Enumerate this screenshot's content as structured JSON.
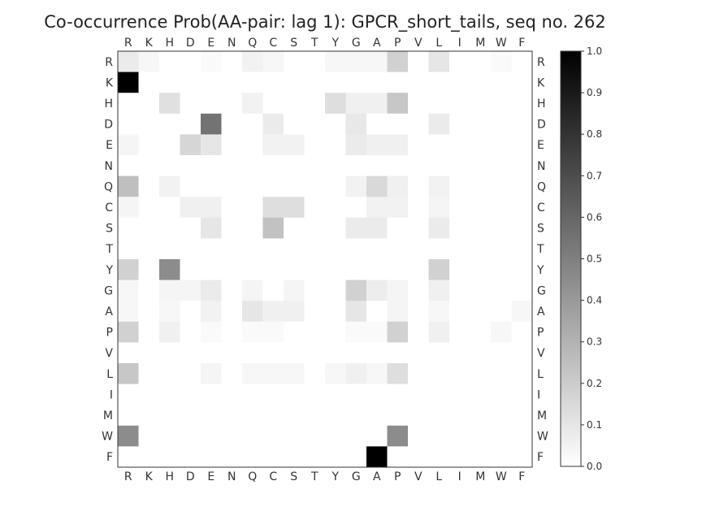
{
  "chart_data": {
    "type": "heatmap",
    "title": "Co-occurrence Prob(AA-pair: lag 1):  GPCR_short_tails, seq no. 262",
    "labels": [
      "R",
      "K",
      "H",
      "D",
      "E",
      "N",
      "Q",
      "C",
      "S",
      "T",
      "Y",
      "G",
      "A",
      "P",
      "V",
      "L",
      "I",
      "M",
      "W",
      "F"
    ],
    "values": [
      [
        0.08,
        0.03,
        0,
        0,
        0.02,
        0,
        0.05,
        0.03,
        0,
        0,
        0.03,
        0.03,
        0.03,
        0.18,
        0,
        0.1,
        0,
        0,
        0.02,
        0
      ],
      [
        1.0,
        0,
        0,
        0,
        0,
        0,
        0,
        0,
        0,
        0,
        0,
        0,
        0,
        0,
        0,
        0,
        0,
        0,
        0,
        0
      ],
      [
        0,
        0,
        0.12,
        0,
        0,
        0,
        0.05,
        0,
        0,
        0,
        0.13,
        0.06,
        0.06,
        0.22,
        0,
        0,
        0,
        0,
        0,
        0
      ],
      [
        0,
        0,
        0,
        0,
        0.55,
        0,
        0,
        0.08,
        0,
        0,
        0,
        0.09,
        0,
        0,
        0,
        0.08,
        0,
        0,
        0,
        0
      ],
      [
        0.04,
        0,
        0,
        0.16,
        0.1,
        0,
        0,
        0.05,
        0.05,
        0,
        0,
        0.08,
        0.06,
        0.06,
        0,
        0,
        0,
        0,
        0,
        0
      ],
      [
        0,
        0,
        0,
        0,
        0,
        0,
        0,
        0,
        0,
        0,
        0,
        0,
        0,
        0,
        0,
        0,
        0,
        0,
        0,
        0
      ],
      [
        0.25,
        0,
        0.05,
        0,
        0,
        0,
        0,
        0,
        0,
        0,
        0,
        0.05,
        0.15,
        0.06,
        0,
        0.05,
        0,
        0,
        0,
        0
      ],
      [
        0.04,
        0,
        0,
        0.06,
        0.06,
        0,
        0,
        0.13,
        0.13,
        0,
        0,
        0,
        0.05,
        0.05,
        0,
        0.04,
        0,
        0,
        0,
        0
      ],
      [
        0,
        0,
        0,
        0,
        0.1,
        0,
        0,
        0.24,
        0,
        0,
        0,
        0.08,
        0.08,
        0,
        0,
        0.08,
        0,
        0,
        0,
        0
      ],
      [
        0,
        0,
        0,
        0,
        0,
        0,
        0,
        0,
        0,
        0,
        0,
        0,
        0,
        0,
        0,
        0,
        0,
        0,
        0,
        0
      ],
      [
        0.18,
        0,
        0.45,
        0,
        0,
        0,
        0,
        0,
        0,
        0,
        0,
        0,
        0,
        0,
        0,
        0.18,
        0,
        0,
        0,
        0
      ],
      [
        0.03,
        0,
        0.04,
        0.04,
        0.08,
        0,
        0.04,
        0,
        0.04,
        0,
        0,
        0.18,
        0.07,
        0.04,
        0,
        0.06,
        0,
        0,
        0,
        0
      ],
      [
        0.03,
        0,
        0.03,
        0,
        0.05,
        0,
        0.1,
        0.06,
        0.06,
        0,
        0,
        0.1,
        0,
        0.04,
        0,
        0.03,
        0,
        0,
        0,
        0.03
      ],
      [
        0.18,
        0,
        0.06,
        0,
        0.02,
        0,
        0.02,
        0.02,
        0,
        0,
        0,
        0.02,
        0.02,
        0.18,
        0,
        0.06,
        0,
        0,
        0.03,
        0
      ],
      [
        0,
        0,
        0,
        0,
        0,
        0,
        0,
        0,
        0,
        0,
        0,
        0,
        0,
        0,
        0,
        0,
        0,
        0,
        0,
        0
      ],
      [
        0.22,
        0,
        0,
        0,
        0.04,
        0,
        0.03,
        0.03,
        0.03,
        0,
        0.03,
        0.06,
        0.03,
        0.13,
        0,
        0,
        0,
        0,
        0,
        0
      ],
      [
        0,
        0,
        0,
        0,
        0,
        0,
        0,
        0,
        0,
        0,
        0,
        0,
        0,
        0,
        0,
        0,
        0,
        0,
        0,
        0
      ],
      [
        0,
        0,
        0,
        0,
        0,
        0,
        0,
        0,
        0,
        0,
        0,
        0,
        0,
        0,
        0,
        0,
        0,
        0,
        0,
        0
      ],
      [
        0.45,
        0,
        0,
        0,
        0,
        0,
        0,
        0,
        0,
        0,
        0,
        0,
        0,
        0.45,
        0,
        0,
        0,
        0,
        0,
        0
      ],
      [
        0,
        0,
        0,
        0,
        0,
        0,
        0,
        0,
        0,
        0,
        0,
        0,
        1.0,
        0,
        0,
        0,
        0,
        0,
        0,
        0
      ]
    ],
    "colormap": [
      "#ffffff",
      "#000000"
    ],
    "zlim": [
      0,
      1
    ],
    "colorbar_ticks": [
      "0.0",
      "0.1",
      "0.2",
      "0.3",
      "0.4",
      "0.5",
      "0.6",
      "0.7",
      "0.8",
      "0.9",
      "1.0"
    ],
    "colorbar_values": [
      0,
      0.1,
      0.2,
      0.3,
      0.4,
      0.5,
      0.6,
      0.7,
      0.8,
      0.9,
      1.0
    ],
    "tick_labels_on": [
      "top",
      "bottom",
      "left",
      "right"
    ],
    "grid": false
  }
}
